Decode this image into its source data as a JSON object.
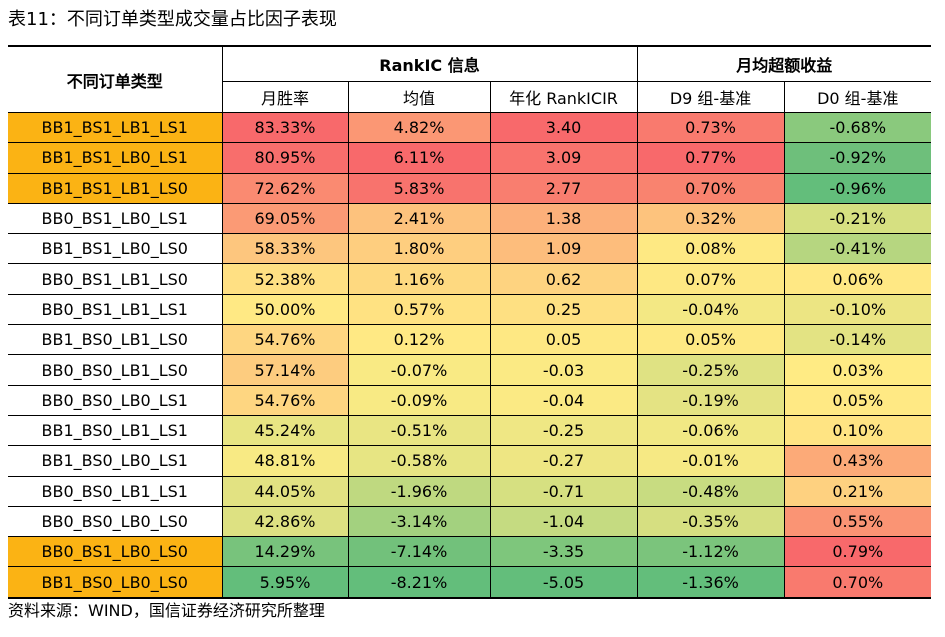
{
  "title": "表11：不同订单类型成交量占比因子表现",
  "header": {
    "col_type": "不同订单类型",
    "group_rankic": "RankIC 信息",
    "group_excess": "月均超额收益",
    "sub": [
      "月胜率",
      "均值",
      "年化 RankICIR",
      "D9 组-基准",
      "D0 组-基准"
    ]
  },
  "rows": [
    {
      "name": "BB1_BS1_LB1_LS1",
      "highlight": true,
      "cells": [
        {
          "text": "83.33%",
          "color": "#f8696b"
        },
        {
          "text": "4.82%",
          "color": "#fb9774"
        },
        {
          "text": "3.40",
          "color": "#f8696b"
        },
        {
          "text": "0.73%",
          "color": "#f97a6e"
        },
        {
          "text": "-0.68%",
          "color": "#8ac97d"
        }
      ]
    },
    {
      "name": "BB1_BS1_LB0_LS1",
      "highlight": true,
      "cells": [
        {
          "text": "80.95%",
          "color": "#f86e6c"
        },
        {
          "text": "6.11%",
          "color": "#f8696b"
        },
        {
          "text": "3.09",
          "color": "#f9736d"
        },
        {
          "text": "0.77%",
          "color": "#f8696b"
        },
        {
          "text": "-0.92%",
          "color": "#6ebf7b"
        }
      ]
    },
    {
      "name": "BB1_BS1_LB1_LS0",
      "highlight": true,
      "cells": [
        {
          "text": "72.62%",
          "color": "#fa8a71"
        },
        {
          "text": "5.83%",
          "color": "#f8736d"
        },
        {
          "text": "2.77",
          "color": "#f97e6f"
        },
        {
          "text": "0.70%",
          "color": "#f9836f"
        },
        {
          "text": "-0.96%",
          "color": "#63be7b"
        }
      ]
    },
    {
      "name": "BB0_BS1_LB0_LS1",
      "highlight": false,
      "cells": [
        {
          "text": "69.05%",
          "color": "#fb9a75"
        },
        {
          "text": "2.41%",
          "color": "#fdc27d"
        },
        {
          "text": "1.38",
          "color": "#fcb07a"
        },
        {
          "text": "0.32%",
          "color": "#fdc37d"
        },
        {
          "text": "-0.21%",
          "color": "#d6e081"
        }
      ]
    },
    {
      "name": "BB1_BS1_LB0_LS0",
      "highlight": false,
      "cells": [
        {
          "text": "58.33%",
          "color": "#fdc67e"
        },
        {
          "text": "1.80%",
          "color": "#fece7f"
        },
        {
          "text": "1.09",
          "color": "#fdbd7c"
        },
        {
          "text": "0.08%",
          "color": "#fee983"
        },
        {
          "text": "-0.41%",
          "color": "#b6d680"
        }
      ]
    },
    {
      "name": "BB0_BS1_LB1_LS0",
      "highlight": false,
      "cells": [
        {
          "text": "52.38%",
          "color": "#ffe083"
        },
        {
          "text": "1.16%",
          "color": "#fed980"
        },
        {
          "text": "0.62",
          "color": "#fed380"
        },
        {
          "text": "0.07%",
          "color": "#fee883"
        },
        {
          "text": "0.06%",
          "color": "#ffe884"
        }
      ]
    },
    {
      "name": "BB0_BS1_LB1_LS1",
      "highlight": false,
      "cells": [
        {
          "text": "50.00%",
          "color": "#ffe984"
        },
        {
          "text": "0.57%",
          "color": "#ffe282"
        },
        {
          "text": "0.25",
          "color": "#fee082"
        },
        {
          "text": "-0.04%",
          "color": "#f3e884"
        },
        {
          "text": "-0.10%",
          "color": "#ece583"
        }
      ]
    },
    {
      "name": "BB1_BS0_LB1_LS0",
      "highlight": false,
      "cells": [
        {
          "text": "54.76%",
          "color": "#fed681"
        },
        {
          "text": "0.12%",
          "color": "#ffe984"
        },
        {
          "text": "0.05",
          "color": "#fee883"
        },
        {
          "text": "0.05%",
          "color": "#fee983"
        },
        {
          "text": "-0.14%",
          "color": "#e3e383"
        }
      ]
    },
    {
      "name": "BB0_BS0_LB1_LS0",
      "highlight": false,
      "cells": [
        {
          "text": "57.14%",
          "color": "#fdcc7f"
        },
        {
          "text": "-0.07%",
          "color": "#f9ea84"
        },
        {
          "text": "-0.03",
          "color": "#fbea84"
        },
        {
          "text": "-0.25%",
          "color": "#dfe283"
        },
        {
          "text": "0.03%",
          "color": "#ffeb84"
        }
      ]
    },
    {
      "name": "BB0_BS0_LB0_LS1",
      "highlight": false,
      "cells": [
        {
          "text": "54.76%",
          "color": "#fed681"
        },
        {
          "text": "-0.09%",
          "color": "#f8ea84"
        },
        {
          "text": "-0.04",
          "color": "#fbea84"
        },
        {
          "text": "-0.19%",
          "color": "#e4e383"
        },
        {
          "text": "0.05%",
          "color": "#ffe984"
        }
      ]
    },
    {
      "name": "BB1_BS0_LB1_LS1",
      "highlight": false,
      "cells": [
        {
          "text": "45.24%",
          "color": "#e8e583"
        },
        {
          "text": "-0.51%",
          "color": "#e9e583"
        },
        {
          "text": "-0.25",
          "color": "#efe784"
        },
        {
          "text": "-0.06%",
          "color": "#f1e884"
        },
        {
          "text": "0.10%",
          "color": "#ffe483"
        }
      ]
    },
    {
      "name": "BB1_BS0_LB0_LS1",
      "highlight": false,
      "cells": [
        {
          "text": "48.81%",
          "color": "#f8ea84"
        },
        {
          "text": "-0.58%",
          "color": "#e7e583"
        },
        {
          "text": "-0.27",
          "color": "#eee683"
        },
        {
          "text": "-0.01%",
          "color": "#f6e984"
        },
        {
          "text": "0.43%",
          "color": "#fcaa78"
        }
      ]
    },
    {
      "name": "BB0_BS0_LB1_LS1",
      "highlight": false,
      "cells": [
        {
          "text": "44.05%",
          "color": "#e2e282"
        },
        {
          "text": "-1.96%",
          "color": "#bfd980"
        },
        {
          "text": "-0.71",
          "color": "#d6e081"
        },
        {
          "text": "-0.48%",
          "color": "#c8dc81"
        },
        {
          "text": "0.21%",
          "color": "#fed180"
        }
      ]
    },
    {
      "name": "BB0_BS0_LB0_LS0",
      "highlight": false,
      "cells": [
        {
          "text": "42.86%",
          "color": "#dde182"
        },
        {
          "text": "-3.14%",
          "color": "#a3d17f"
        },
        {
          "text": "-1.04",
          "color": "#c5db81"
        },
        {
          "text": "-0.35%",
          "color": "#d6df81"
        },
        {
          "text": "0.55%",
          "color": "#fa9474"
        }
      ]
    },
    {
      "name": "BB0_BS1_LB0_LS0",
      "highlight": true,
      "cells": [
        {
          "text": "14.29%",
          "color": "#78c37c"
        },
        {
          "text": "-7.14%",
          "color": "#72c17b"
        },
        {
          "text": "-3.35",
          "color": "#7ec67c"
        },
        {
          "text": "-1.12%",
          "color": "#7bc47c"
        },
        {
          "text": "0.79%",
          "color": "#f8696b"
        }
      ]
    },
    {
      "name": "BB1_BS0_LB0_LS0",
      "highlight": true,
      "cells": [
        {
          "text": "5.95%",
          "color": "#63be7b"
        },
        {
          "text": "-8.21%",
          "color": "#63be7b"
        },
        {
          "text": "-5.05",
          "color": "#63be7b"
        },
        {
          "text": "-1.36%",
          "color": "#63be7b"
        },
        {
          "text": "0.70%",
          "color": "#f97a6e"
        }
      ]
    }
  ],
  "source": "资料来源：WIND，国信证券经济研究所整理"
}
